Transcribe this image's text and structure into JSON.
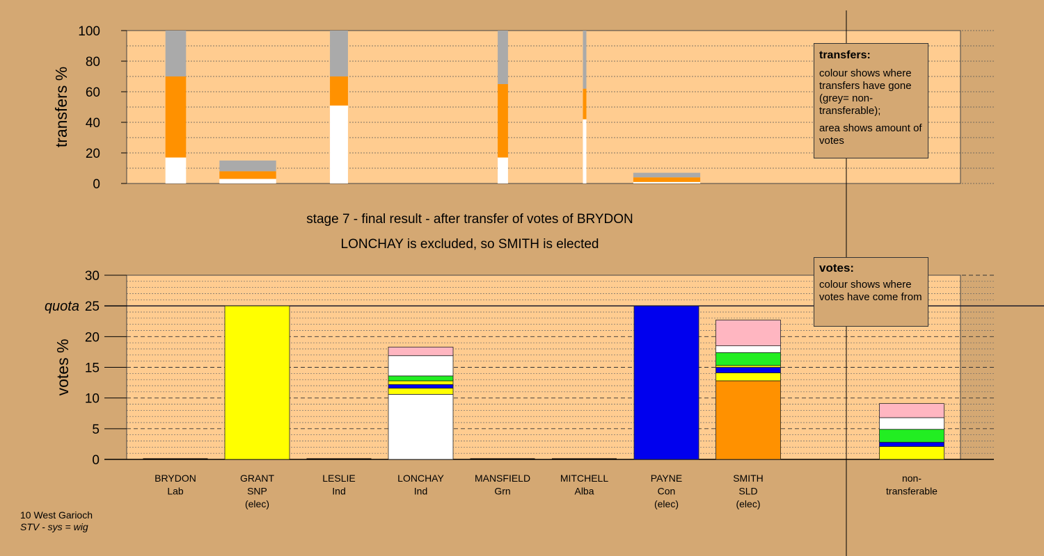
{
  "stage": {
    "title": "stage 7 - final result - after transfer of votes of BRYDON",
    "subtitle": "LONCHAY is excluded, so SMITH is elected"
  },
  "legends": {
    "transfers": {
      "title": "transfers:",
      "line1": "colour shows where transfers have gone (grey= non-transferable);",
      "line2": "area shows amount of votes"
    },
    "votes": {
      "title": "votes:",
      "line1": "colour shows where votes have come from"
    }
  },
  "footer": {
    "ward": "10 West Garioch",
    "system": "STV - sys = wig"
  },
  "colors": {
    "background": "#d4a873",
    "plot": "#ffcc90",
    "Lab": "#ffffff",
    "SNP": "#ffff00",
    "Con": "#0000ee",
    "SLD": "#ff9100",
    "Grn": "#22ee22",
    "Alba": "#ffb6c1",
    "Ind": "#ffffff",
    "non-transferable": "#aaaaaa"
  },
  "chart_data": [
    {
      "type": "bar",
      "name": "transfers",
      "ylabel": "transfers %",
      "ylim": [
        0,
        100
      ],
      "yticks": [
        0,
        20,
        40,
        60,
        80,
        100
      ],
      "grid": true,
      "categories": [
        "BRYDON",
        "GRANT",
        "LESLIE",
        "LONCHAY",
        "MANSFIELD",
        "MITCHELL",
        "PAYNE",
        "SMITH"
      ],
      "bars": [
        {
          "candidate": "BRYDON",
          "width_votes": 4,
          "segments": [
            {
              "to": "LONCHAY",
              "color": "#ffffff",
              "value": 17
            },
            {
              "to": "SMITH",
              "color": "#ff9100",
              "value": 53
            },
            {
              "to": "non-transferable",
              "color": "#aaaaaa",
              "value": 30
            }
          ]
        },
        {
          "candidate": "GRANT",
          "width_votes": 11,
          "segments": [
            {
              "to": "LONCHAY",
              "color": "#ffffff",
              "value": 3
            },
            {
              "to": "SMITH",
              "color": "#ff9100",
              "value": 5
            },
            {
              "to": "non-transferable",
              "color": "#aaaaaa",
              "value": 7
            }
          ]
        },
        {
          "candidate": "LESLIE",
          "width_votes": 3.5,
          "segments": [
            {
              "to": "LONCHAY",
              "color": "#ffffff",
              "value": 51
            },
            {
              "to": "SMITH",
              "color": "#ff9100",
              "value": 19
            },
            {
              "to": "non-transferable",
              "color": "#aaaaaa",
              "value": 30
            }
          ]
        },
        {
          "candidate": "MANSFIELD",
          "width_votes": 2,
          "segments": [
            {
              "to": "LONCHAY",
              "color": "#ffffff",
              "value": 17
            },
            {
              "to": "SMITH",
              "color": "#ff9100",
              "value": 48
            },
            {
              "to": "non-transferable",
              "color": "#aaaaaa",
              "value": 35
            }
          ]
        },
        {
          "candidate": "MITCHELL",
          "width_votes": 0.5,
          "segments": [
            {
              "to": "LONCHAY",
              "color": "#ffffff",
              "value": 42
            },
            {
              "to": "SMITH",
              "color": "#ff9100",
              "value": 20
            },
            {
              "to": "non-transferable",
              "color": "#aaaaaa",
              "value": 38
            }
          ]
        },
        {
          "candidate": "PAYNE",
          "width_votes": 13,
          "segments": [
            {
              "to": "LONCHAY",
              "color": "#ffffff",
              "value": 1
            },
            {
              "to": "SMITH",
              "color": "#ff9100",
              "value": 3
            },
            {
              "to": "non-transferable",
              "color": "#aaaaaa",
              "value": 3
            }
          ]
        }
      ]
    },
    {
      "type": "bar",
      "name": "votes",
      "ylabel": "votes %",
      "ylim": [
        0,
        30
      ],
      "yticks": [
        0,
        5,
        10,
        15,
        20,
        25,
        30
      ],
      "quota": 25,
      "quota_label": "quota",
      "grid": true,
      "candidates": [
        {
          "name": "BRYDON",
          "party": "Lab",
          "status": "",
          "segments": []
        },
        {
          "name": "GRANT",
          "party": "SNP",
          "status": "(elec)",
          "segments": [
            {
              "from": "SNP",
              "color": "#ffff00",
              "value": 25
            }
          ]
        },
        {
          "name": "LESLIE",
          "party": "Ind",
          "status": "",
          "segments": []
        },
        {
          "name": "LONCHAY",
          "party": "Ind",
          "status": "",
          "segments": [
            {
              "from": "Ind",
              "color": "#ffffff",
              "value": 10.6
            },
            {
              "from": "SNP",
              "color": "#ffff00",
              "value": 1.0
            },
            {
              "from": "Con",
              "color": "#0000ee",
              "value": 0.6
            },
            {
              "from": "SNP",
              "color": "#ffff00",
              "value": 0.6
            },
            {
              "from": "Grn",
              "color": "#22ee22",
              "value": 0.8
            },
            {
              "from": "Ind",
              "color": "#ffffff",
              "value": 3.3
            },
            {
              "from": "Alba",
              "color": "#ffb6c1",
              "value": 1.4
            }
          ]
        },
        {
          "name": "MANSFIELD",
          "party": "Grn",
          "status": "",
          "segments": []
        },
        {
          "name": "MITCHELL",
          "party": "Alba",
          "status": "",
          "segments": []
        },
        {
          "name": "PAYNE",
          "party": "Con",
          "status": "(elec)",
          "segments": [
            {
              "from": "Con",
              "color": "#0000ee",
              "value": 25
            }
          ]
        },
        {
          "name": "SMITH",
          "party": "SLD",
          "status": "(elec)",
          "segments": [
            {
              "from": "SLD",
              "color": "#ff9100",
              "value": 12.8
            },
            {
              "from": "SNP",
              "color": "#ffff00",
              "value": 1.3
            },
            {
              "from": "Con",
              "color": "#0000ee",
              "value": 0.9
            },
            {
              "from": "SNP",
              "color": "#ffff00",
              "value": 0.3
            },
            {
              "from": "Grn",
              "color": "#22ee22",
              "value": 2.1
            },
            {
              "from": "Ind",
              "color": "#ffffff",
              "value": 1.1
            },
            {
              "from": "Alba",
              "color": "#ffb6c1",
              "value": 4.2
            }
          ]
        },
        {
          "name": "non-transferable",
          "party": "",
          "status": "",
          "segments": [
            {
              "from": "SNP",
              "color": "#ffff00",
              "value": 2.1
            },
            {
              "from": "Con",
              "color": "#0000ee",
              "value": 0.7
            },
            {
              "from": "Grn",
              "color": "#22ee22",
              "value": 2.1
            },
            {
              "from": "Ind",
              "color": "#ffffff",
              "value": 1.9
            },
            {
              "from": "Alba",
              "color": "#ffb6c1",
              "value": 2.3
            }
          ]
        }
      ]
    }
  ]
}
